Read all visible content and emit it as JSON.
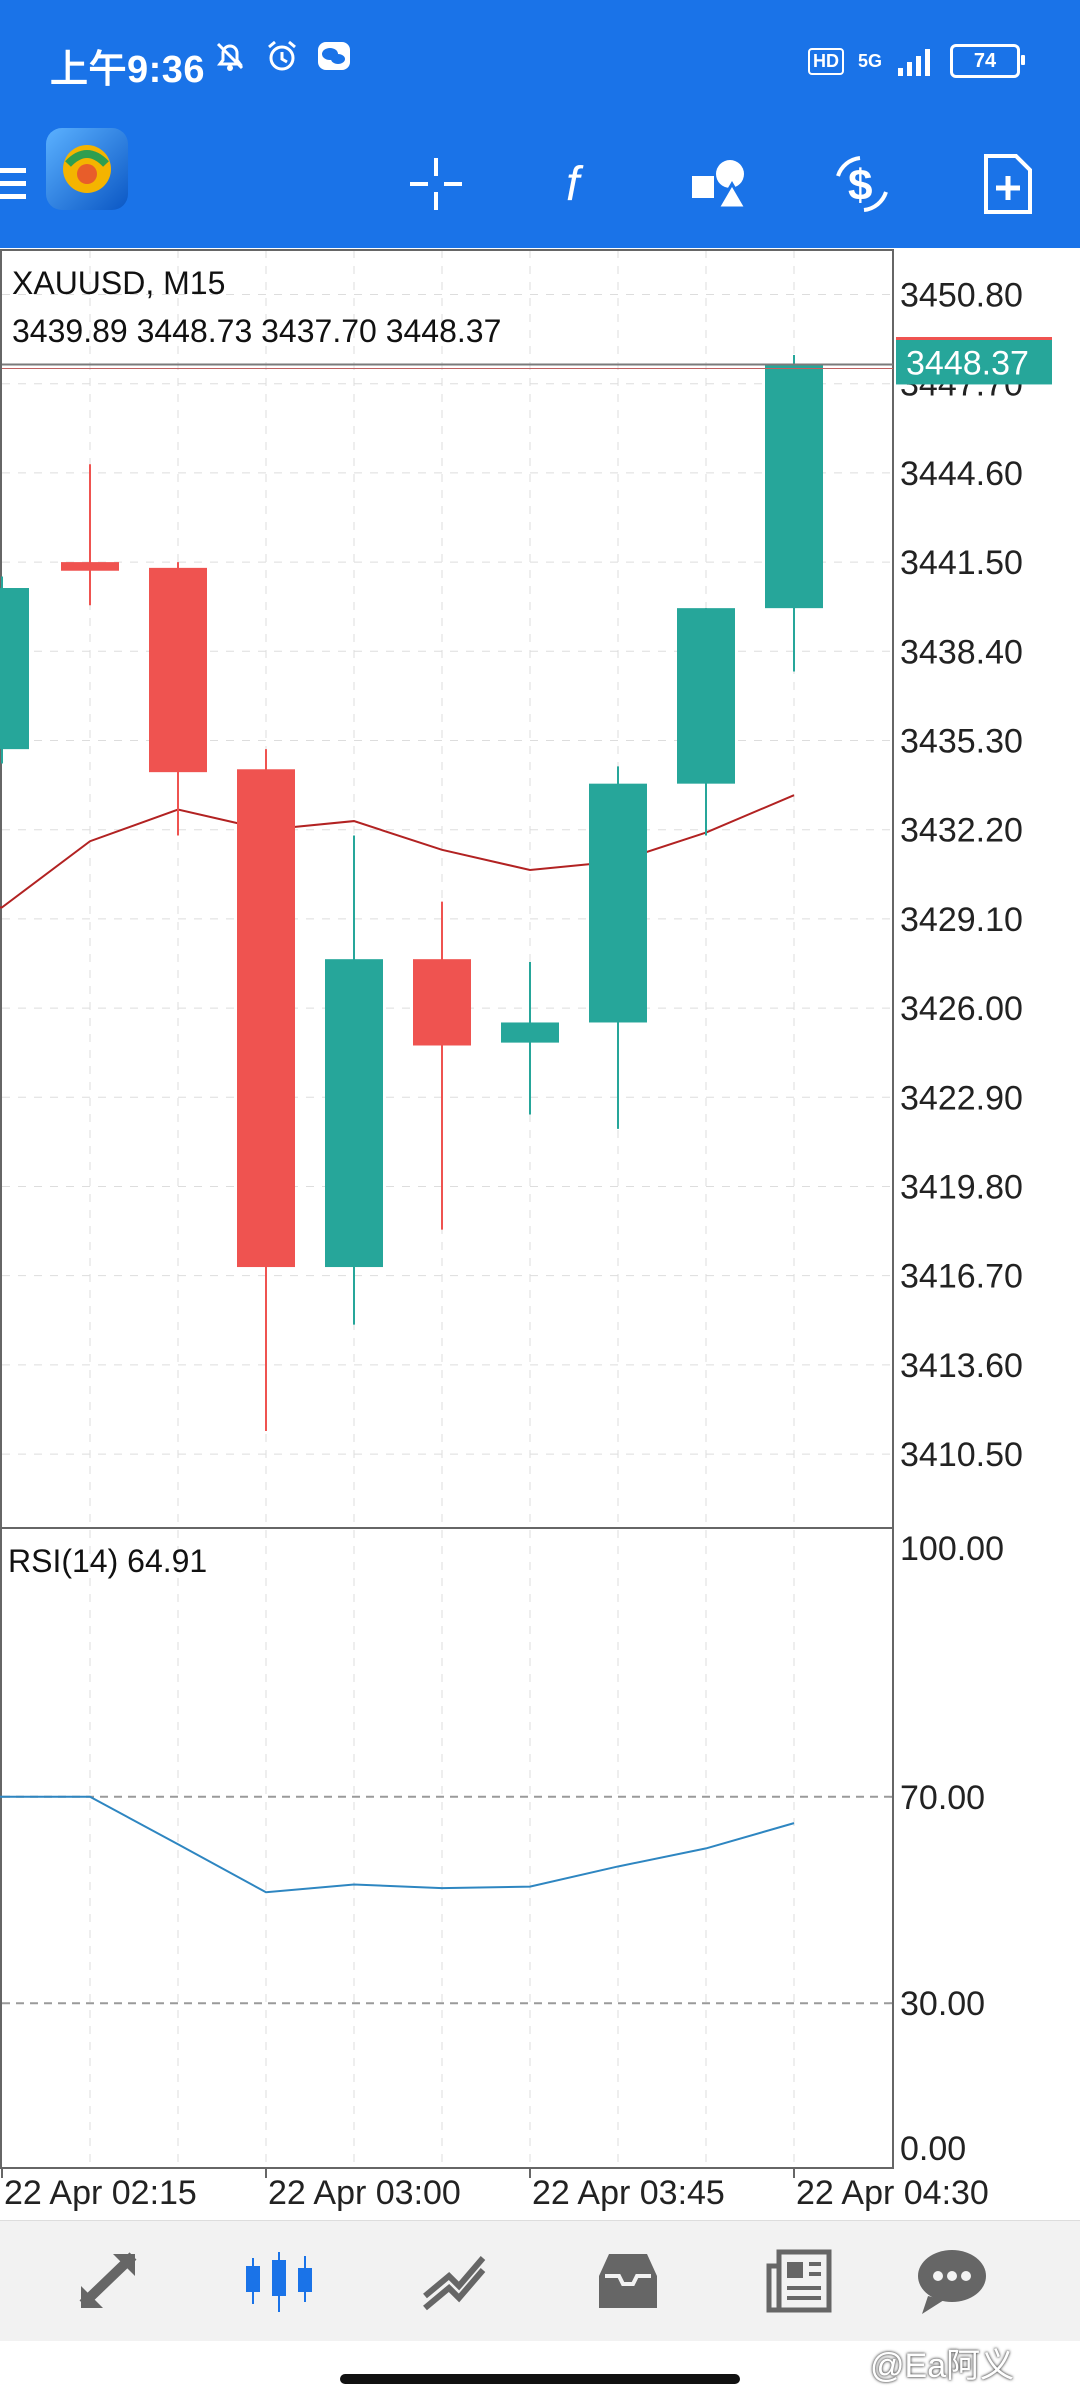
{
  "status_bar": {
    "time": "上午9:36",
    "network": "5G",
    "hd_label": "HD",
    "battery": "74",
    "icons": [
      "mute-bell-icon",
      "alarm-icon",
      "wechat-icon",
      "signal-icon",
      "battery-icon"
    ]
  },
  "toolbar": {
    "buttons": [
      "menu-icon",
      "crosshair-icon",
      "indicator-f-icon",
      "objects-icon",
      "trade-dollar-icon",
      "new-order-icon"
    ]
  },
  "chart": {
    "symbol": "XAUUSD, M15",
    "ohlc": "3439.89 3448.73 3437.70 3448.37",
    "current_price": "3448.37",
    "price_labels": [
      "3450.80",
      "3447.70",
      "3444.60",
      "3441.50",
      "3438.40",
      "3435.30",
      "3432.20",
      "3429.10",
      "3426.00",
      "3422.90",
      "3419.80",
      "3416.70",
      "3413.60",
      "3410.50"
    ],
    "rsi_title": "RSI(14) 64.91",
    "rsi_labels": [
      "100.00",
      "70.00",
      "30.00",
      "0.00"
    ],
    "time_labels": [
      "22 Apr 02:15",
      "22 Apr 03:00",
      "22 Apr 03:45",
      "22 Apr 04:30"
    ],
    "colors": {
      "bull": "#26a69a",
      "bear": "#ef5350",
      "ma": "#b22222",
      "rsi": "#2e86c1",
      "accent": "#1a73e8"
    }
  },
  "chart_data": {
    "type": "candlestick",
    "symbol": "XAUUSD",
    "timeframe": "M15",
    "ylim": [
      3408.0,
      3452.0
    ],
    "candles": [
      {
        "open": 3435.0,
        "high": 3441.0,
        "low": 3434.5,
        "close": 3440.6,
        "visible": "partial"
      },
      {
        "open": 3441.5,
        "high": 3444.9,
        "low": 3440.0,
        "close": 3441.2
      },
      {
        "open": 3441.3,
        "high": 3441.5,
        "low": 3432.0,
        "close": 3434.2
      },
      {
        "open": 3434.3,
        "high": 3435.0,
        "low": 3411.3,
        "close": 3417.0
      },
      {
        "open": 3417.0,
        "high": 3432.0,
        "low": 3415.0,
        "close": 3427.7
      },
      {
        "open": 3427.7,
        "high": 3429.7,
        "low": 3418.3,
        "close": 3424.7
      },
      {
        "open": 3424.8,
        "high": 3427.6,
        "low": 3422.3,
        "close": 3425.5
      },
      {
        "open": 3425.5,
        "high": 3434.4,
        "low": 3421.8,
        "close": 3433.8
      },
      {
        "open": 3433.8,
        "high": 3439.9,
        "low": 3432.0,
        "close": 3439.9
      },
      {
        "open": 3439.9,
        "high": 3448.7,
        "low": 3437.7,
        "close": 3448.4
      }
    ],
    "moving_average": [
      3429.5,
      3431.8,
      3432.9,
      3432.2,
      3432.5,
      3431.5,
      3430.8,
      3431.1,
      3432.1,
      3433.4
    ],
    "rsi": {
      "name": "RSI(14)",
      "current": 64.91,
      "ylim": [
        0,
        100
      ],
      "levels": [
        70,
        30
      ],
      "values": [
        70.0,
        70.0,
        60.8,
        51.5,
        53.0,
        52.3,
        52.6,
        56.5,
        60.0,
        64.9
      ]
    },
    "x_ticks": [
      "22 Apr 02:15",
      "22 Apr 03:00",
      "22 Apr 03:45",
      "22 Apr 04:30"
    ]
  },
  "bottom_nav": {
    "items": [
      "quotes-icon",
      "chart-icon",
      "trade-icon",
      "history-icon",
      "news-icon",
      "chat-icon"
    ],
    "active": "chart-icon"
  },
  "watermark": "@Ea阿义"
}
